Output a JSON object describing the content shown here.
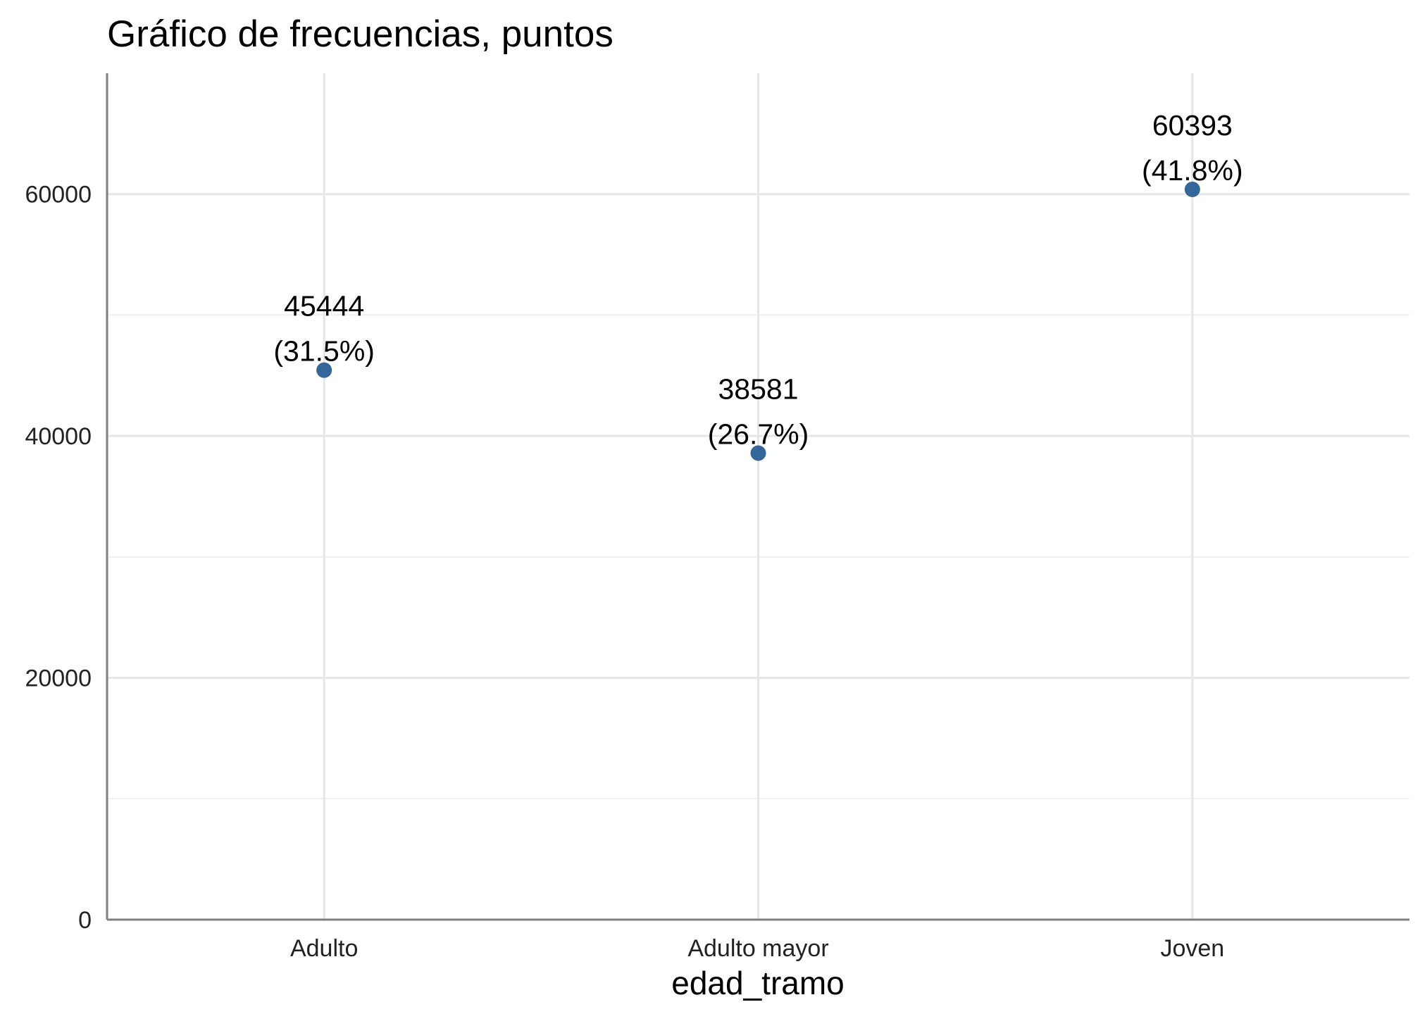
{
  "chart_data": {
    "type": "scatter",
    "title": "Gráfico de frecuencias, puntos",
    "xlabel": "edad_tramo",
    "ylabel": "",
    "categories": [
      "Adulto",
      "Adulto mayor",
      "Joven"
    ],
    "values": [
      45444,
      38581,
      60393
    ],
    "labels": [
      {
        "count": "45444",
        "pct": "(31.5%)"
      },
      {
        "count": "38581",
        "pct": "(26.7%)"
      },
      {
        "count": "60393",
        "pct": "(41.8%)"
      }
    ],
    "ylim": [
      0,
      70000
    ],
    "yticks": [
      0,
      20000,
      40000,
      60000
    ],
    "yminor": [
      10000,
      30000,
      50000
    ],
    "grid": true,
    "colors": {
      "point": "#336699"
    }
  }
}
